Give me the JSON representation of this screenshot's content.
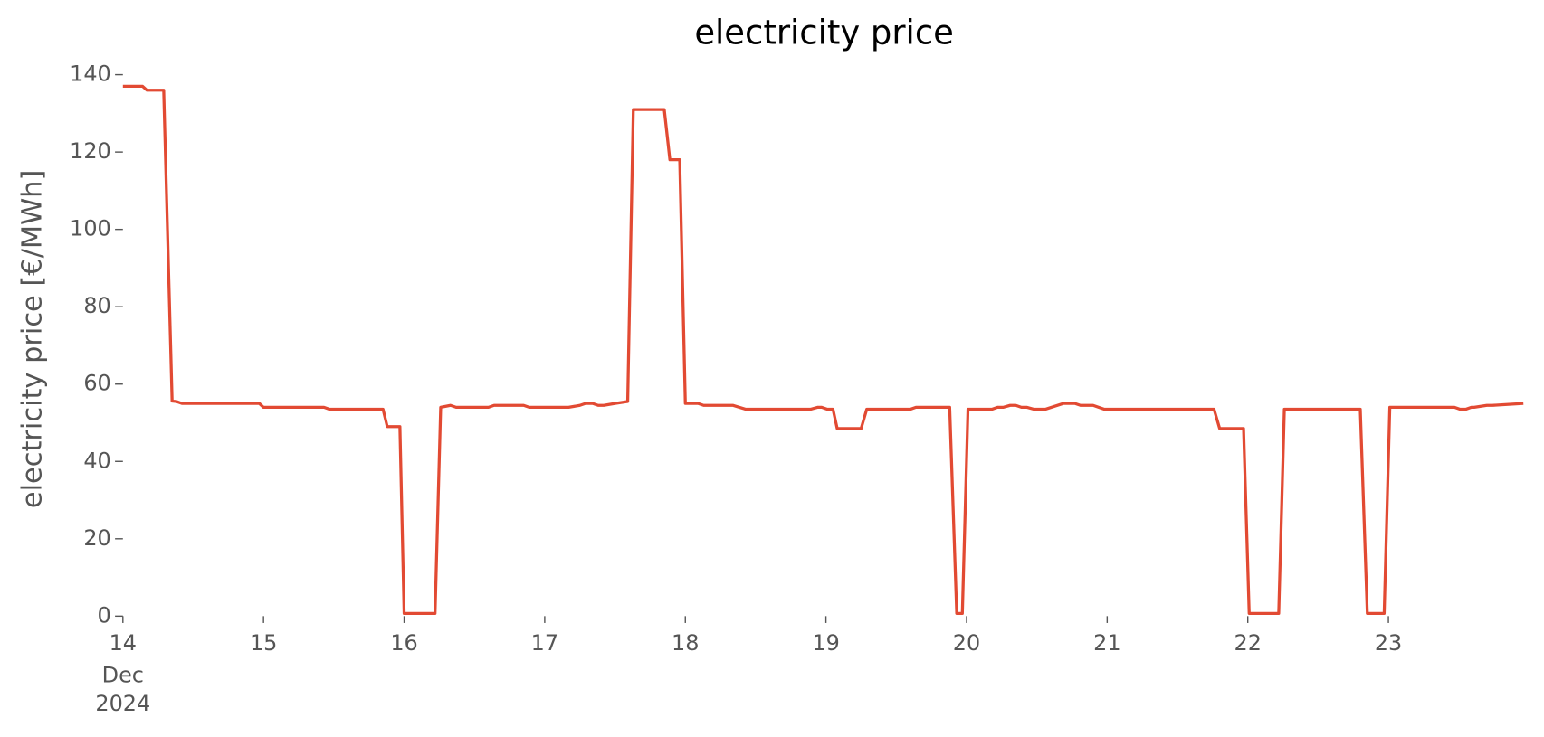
{
  "chart_data": {
    "type": "line",
    "title": "electricity price",
    "y_label": "electricity price [€/MWh]",
    "x_month_label": "Dec",
    "x_year_label": "2024",
    "x": [
      14,
      14.14,
      14.17,
      14.29,
      14.35,
      14.38,
      14.42,
      14.97,
      15.0,
      15.43,
      15.47,
      15.85,
      15.88,
      15.97,
      16.0,
      16.22,
      16.26,
      16.33,
      16.37,
      16.6,
      16.64,
      16.85,
      16.89,
      17.17,
      17.25,
      17.29,
      17.34,
      17.38,
      17.42,
      17.5,
      17.59,
      17.63,
      17.85,
      17.89,
      17.96,
      18.0,
      18.09,
      18.13,
      18.34,
      18.43,
      18.89,
      18.94,
      18.97,
      19.01,
      19.05,
      19.08,
      19.25,
      19.29,
      19.6,
      19.64,
      19.88,
      19.93,
      19.97,
      20.01,
      20.18,
      20.22,
      20.26,
      20.31,
      20.35,
      20.39,
      20.43,
      20.48,
      20.56,
      20.69,
      20.77,
      20.81,
      20.9,
      20.98,
      21.76,
      21.8,
      21.97,
      22.01,
      22.22,
      22.26,
      22.8,
      22.85,
      22.97,
      23.01,
      23.47,
      23.51,
      23.55,
      23.59,
      23.61,
      23.7,
      23.74,
      23.96
    ],
    "series": [
      {
        "name": "electricity price",
        "color": "#e24a33",
        "values": [
          137,
          137,
          136,
          136,
          55.6,
          55.5,
          55,
          55,
          54,
          54,
          53.5,
          53.5,
          49,
          49,
          0.7,
          0.7,
          54,
          54.5,
          54,
          54,
          54.5,
          54.5,
          54,
          54,
          54.5,
          55,
          55,
          54.5,
          54.5,
          55,
          55.5,
          131,
          131,
          118,
          118,
          55,
          55,
          54.5,
          54.5,
          53.5,
          53.5,
          54,
          54,
          53.5,
          53.5,
          48.5,
          48.5,
          53.5,
          53.5,
          54,
          54,
          0.7,
          0.7,
          53.5,
          53.5,
          54,
          54,
          54.5,
          54.5,
          54,
          54,
          53.5,
          53.5,
          55,
          55,
          54.5,
          54.5,
          53.5,
          53.5,
          48.5,
          48.5,
          0.7,
          0.7,
          53.5,
          53.5,
          0.7,
          0.7,
          54,
          54,
          53.5,
          53.5,
          54,
          54,
          54.5,
          54.5,
          55
        ]
      }
    ],
    "xlim": [
      14,
      23.96
    ],
    "xticks": [
      14,
      15,
      16,
      17,
      18,
      19,
      20,
      21,
      22,
      23
    ],
    "ylim": [
      0,
      140
    ],
    "yticks": [
      0,
      20,
      40,
      60,
      80,
      100,
      120,
      140
    ]
  }
}
